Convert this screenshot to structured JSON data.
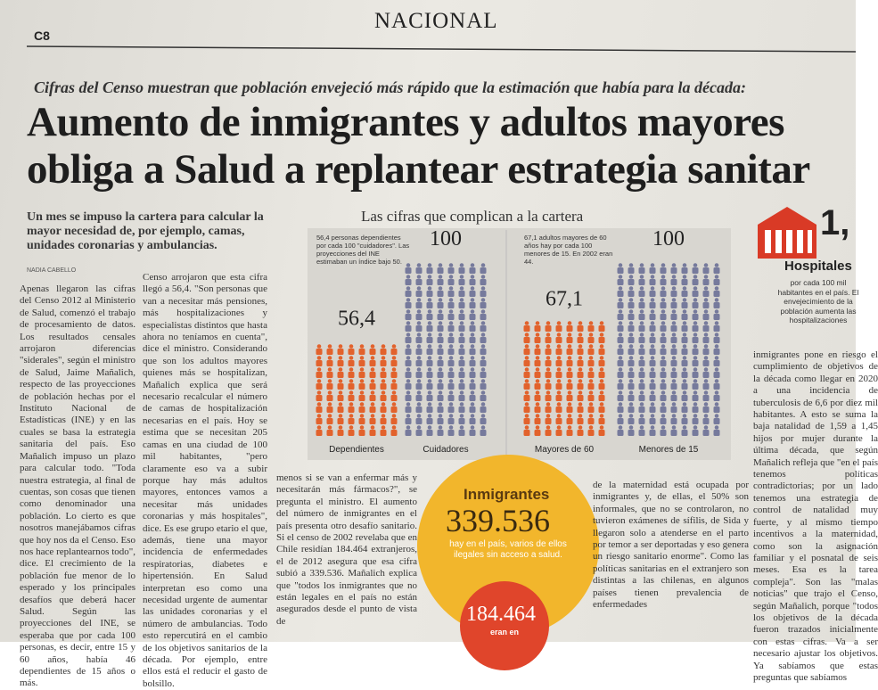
{
  "header": {
    "section": "NACIONAL",
    "page": "C8"
  },
  "kicker": "Cifras del Censo muestran que población envejeció más rápido que la estimación que había para la década:",
  "headline": [
    "Aumento de inmigrantes y adultos mayores",
    "obliga a Salud a replantear estrategia sanitar"
  ],
  "lede": "Un mes se impuso la cartera para calcular la mayor necesidad de, por ejemplo, camas, unidades coronarias y ambulancias.",
  "byline": "NADIA CABELLO",
  "columns": [
    "Apenas llegaron las cifras del Censo 2012 al Ministerio de Salud, comenzó el trabajo de procesamiento de datos. Los resultados censales arrojaron diferencias \"siderales\", según el ministro de Salud, Jaime Mañalich, respecto de las proyecciones de población hechas por el Instituto Nacional de Estadísticas (INE) y en las cuales se basa la estrategia sanitaria del país. Eso Mañalich impuso un plazo para calcular todo. \"Toda nuestra estrategia, al final de cuentas, son cosas que tienen como denominador una población. Lo cierto es que nosotros manejábamos cifras que hoy nos da el Censo. Eso nos hace replantearnos todo\", dice. El crecimiento de la población fue menor de lo esperado y los principales desafíos que deberá hacer Salud. Según las proyecciones del INE, se esperaba que por cada 100 personas, es decir, entre 15 y 60 años, había 46 dependientes de 15 años o más.",
    "Censo arrojaron que esta cifra llegó a 56,4. \"Son personas que van a necesitar más pensiones, más hospitalizaciones y especialistas distintos que hasta ahora no teníamos en cuenta\", dice el ministro. Considerando que son los adultos mayores quienes más se hospitalizan, Mañalich explica que será necesario recalcular el número de camas de hospitalización necesarias en el país. Hoy se estima que se necesitan 205 camas en una ciudad de 100 mil habitantes, \"pero claramente eso va a subir porque hay más adultos mayores, entonces vamos a necesitar más unidades coronarias y más hospitales\", dice. Es ese grupo etario el que, además, tiene una mayor incidencia de enfermedades respiratorias, diabetes e hipertensión. En Salud interpretan eso como una necesidad urgente de aumentar las unidades coronarias y el número de ambulancias. Todo esto repercutirá en el cambio de los objetivos sanitarios de la década. Por ejemplo, entre ellos está el reducir el gasto de bolsillo.",
    "menos si se van a enfermar más y necesitarán más fármacos?\", se pregunta el ministro. El aumento del número de inmigrantes en el país presenta otro desafío sanitario. Si el censo de 2002 revelaba que en Chile residían 184.464 extranjeros, el de 2012 asegura que esa cifra subió a 339.536. Mañalich explica que \"todos los inmigrantes que no están legales en el país no están asegurados desde el punto de vista de",
    "de la maternidad está ocupada por inmigrantes y, de ellas, el 50% son informales, que no se controlaron, no tuvieron exámenes de sífilis, de Sida y llegaron solo a atenderse en el parto por temor a ser deportadas y eso genera un riesgo sanitario enorme\". Como las políticas sanitarias en el extranjero son distintas a las chilenas, en algunos países tienen prevalencia de enfermedades",
    "inmigrantes pone en riesgo el cumplimiento de objetivos de la década como llegar en 2020 a una incidencia de tuberculosis de 6,6 por diez mil habitantes. A esto se suma la baja natalidad de 1,59 a 1,45 hijos por mujer durante la última década, que según Mañalich refleja que \"en el país tenemos políticas contradictorias; por un lado tenemos una estrategia de control de natalidad muy fuerte, y al mismo tiempo incentivos a la maternidad, como son la asignación familiar y el posnatal de seis meses. Esa es la tarea compleja\". Son las \"malas noticias\" que trajo el Censo, según Mañalich, porque \"todos los objetivos de la década fueron trazados inicialmente con estas cifras. Va a ser necesario ajustar los objetivos. Ya sabíamos que estas preguntas que sabíamos"
  ],
  "infographic": {
    "title": "Las cifras que complican a la cartera",
    "panels": [
      {
        "note": "56,4 personas dependientes por cada 100 \"cuidadores\". Las proyecciones del INE estimaban un índice bajo 50.",
        "bars": [
          {
            "label": "Dependientes",
            "value": 56.4,
            "value_label": "56,4",
            "color": "#e2622c"
          },
          {
            "label": "Cuidadores",
            "value": 100,
            "color": "#767a9c"
          }
        ]
      },
      {
        "note": "67,1 adultos mayores de 60 años hay por cada 100 menores de 15. En 2002 eran 44.",
        "bars": [
          {
            "label": "Mayores de 60",
            "value": 67.1,
            "value_label": "67,1",
            "color": "#e2622c"
          },
          {
            "label": "Menores de 15",
            "value": 100,
            "color": "#767a9c"
          }
        ]
      }
    ]
  },
  "hospitals": {
    "number": "1,",
    "title": "Hospitales",
    "text": "por cada 100 mil habitantes en el país. El envejecimiento de la población aumenta las hospitalizaciones"
  },
  "immigrants": {
    "title": "Inmigrantes",
    "number": "339.536",
    "text": "hay en el país, varios de ellos ilegales sin acceso a salud.",
    "previous": "184.464",
    "previous_text": "eran en"
  }
}
